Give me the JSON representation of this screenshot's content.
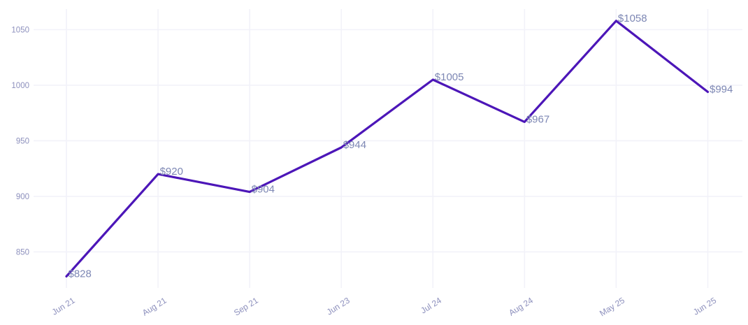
{
  "chart_data": {
    "type": "line",
    "categories": [
      "Jun 21",
      "Aug 21",
      "Sep 21",
      "Jun 23",
      "Jul 24",
      "Aug 24",
      "May 25",
      "Jun 25"
    ],
    "values": [
      828,
      920,
      904,
      944,
      1005,
      967,
      1058,
      994
    ],
    "point_labels": [
      "$828",
      "$920",
      "$904",
      "$944",
      "$1005",
      "$967",
      "$1058",
      "$994"
    ],
    "y_ticks": [
      850,
      900,
      950,
      1000,
      1050
    ],
    "ylim": [
      817,
      1068
    ],
    "title": "",
    "xlabel": "",
    "ylabel": "",
    "grid": true,
    "legend_position": "none",
    "x_label_rotation_deg": -32,
    "colors": {
      "line": "#4c16b8",
      "grid": "#f2f2f9",
      "axis_tick_text": "#8d90bd",
      "point_label_text": "#7d87b4",
      "background": "#ffffff"
    }
  }
}
